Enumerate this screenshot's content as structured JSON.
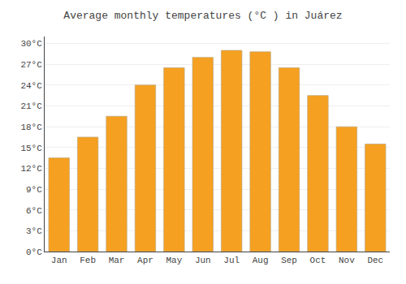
{
  "chart_data": {
    "type": "bar",
    "title": "Average monthly temperatures (°C ) in Juárez",
    "categories": [
      "Jan",
      "Feb",
      "Mar",
      "Apr",
      "May",
      "Jun",
      "Jul",
      "Aug",
      "Sep",
      "Oct",
      "Nov",
      "Dec"
    ],
    "values": [
      13.5,
      16.5,
      19.5,
      24.0,
      26.5,
      28.0,
      29.0,
      28.8,
      26.5,
      22.5,
      18.0,
      15.5
    ],
    "color": "#F5A020",
    "ylim": [
      0,
      31
    ],
    "yticks": [
      {
        "value": 0,
        "label": "0°C"
      },
      {
        "value": 3,
        "label": "3°C"
      },
      {
        "value": 6,
        "label": "6°C"
      },
      {
        "value": 9,
        "label": "9°C"
      },
      {
        "value": 12,
        "label": "12°C"
      },
      {
        "value": 15,
        "label": "15°C"
      },
      {
        "value": 18,
        "label": "18°C"
      },
      {
        "value": 21,
        "label": "21°C"
      },
      {
        "value": 24,
        "label": "24°C"
      },
      {
        "value": 27,
        "label": "27°C"
      },
      {
        "value": 30,
        "label": "30°C"
      }
    ],
    "grid": true
  }
}
